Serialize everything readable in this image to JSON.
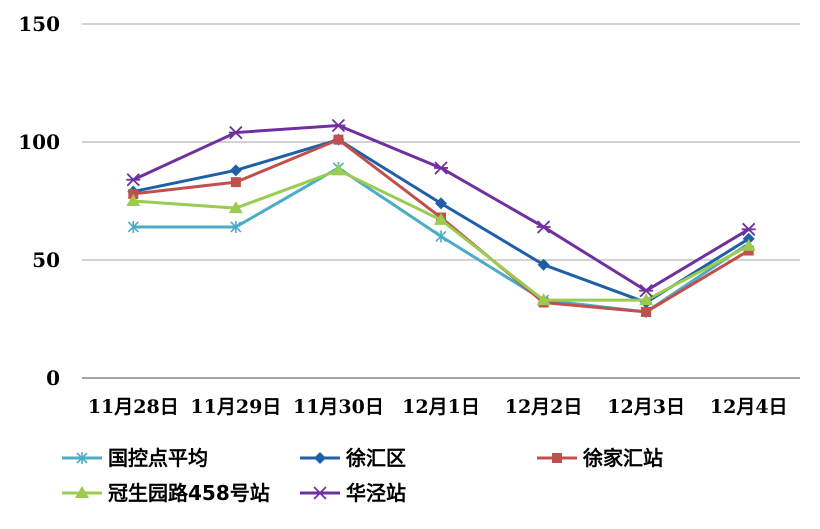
{
  "chart_data": {
    "type": "line",
    "title": "",
    "xlabel": "",
    "ylabel": "",
    "ylim": [
      0,
      150
    ],
    "yticks": [
      0,
      50,
      100,
      150
    ],
    "grid": true,
    "legend_position": "bottom",
    "categories": [
      "11月28日",
      "11月29日",
      "11月30日",
      "12月1日",
      "12月2日",
      "12月3日",
      "12月4日"
    ],
    "series": [
      {
        "name": "国控点平均",
        "color": "#4bacc6",
        "marker": "asterisk",
        "values": [
          64,
          64,
          89,
          60,
          33,
          28,
          57
        ]
      },
      {
        "name": "徐汇区",
        "color": "#1f5fa8",
        "marker": "diamond",
        "values": [
          79,
          88,
          101,
          74,
          48,
          32,
          59
        ]
      },
      {
        "name": "徐家汇站",
        "color": "#c0504d",
        "marker": "square",
        "values": [
          78,
          83,
          101,
          68,
          32,
          28,
          54
        ]
      },
      {
        "name": "冠生园路458号站",
        "color": "#9bcb50",
        "marker": "triangle",
        "values": [
          75,
          72,
          88,
          67,
          33,
          33,
          56
        ]
      },
      {
        "name": "华泾站",
        "color": "#7030a0",
        "marker": "asterisk-x",
        "values": [
          84,
          104,
          107,
          89,
          64,
          37,
          63
        ]
      }
    ]
  }
}
